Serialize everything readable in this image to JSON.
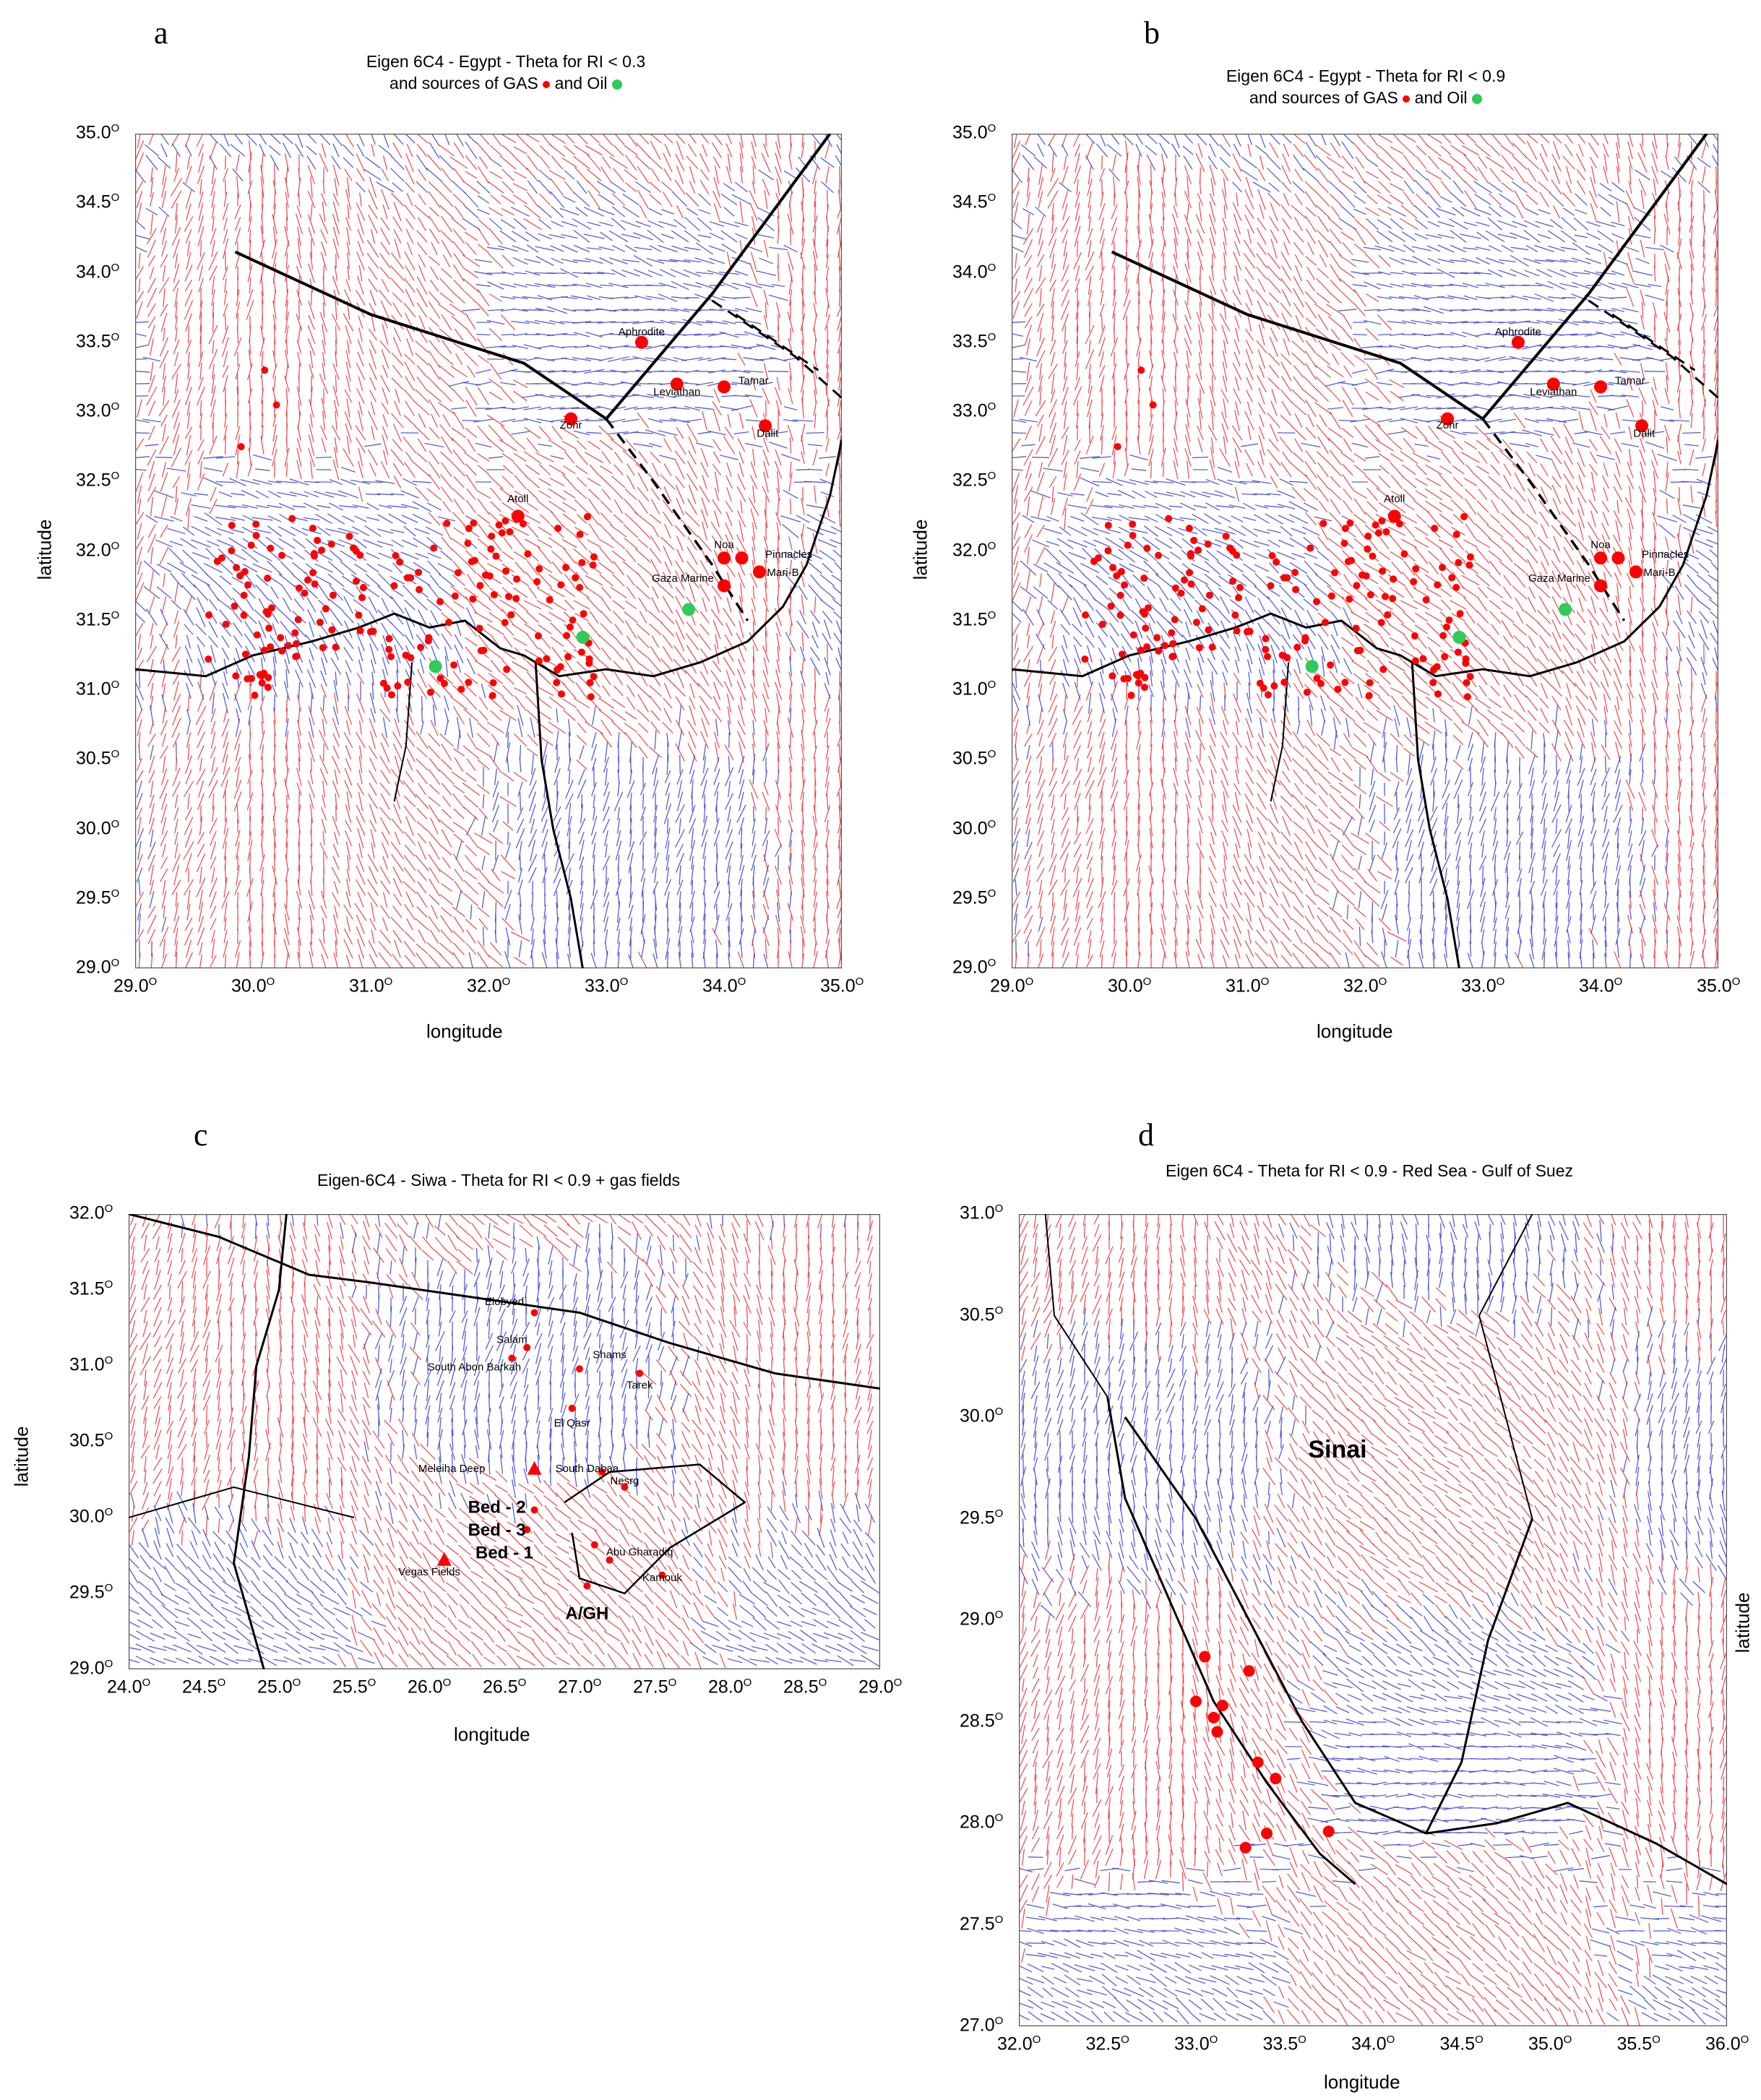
{
  "panels": [
    {
      "id": "a",
      "label": "a",
      "title_line1": "Eigen 6C4 - Egypt - Theta for RI < 0.3",
      "title_line2a": "and sources of GAS",
      "title_line2b": "and Oil",
      "xlabel": "longitude",
      "ylabel": "latitude",
      "xticks": [
        "29.0",
        "30.0",
        "31.0",
        "32.0",
        "33.0",
        "34.0",
        "35.0"
      ],
      "yticks": [
        "35.0",
        "34.5",
        "34.0",
        "33.5",
        "33.0",
        "32.5",
        "32.0",
        "31.5",
        "31.0",
        "30.5",
        "30.0",
        "29.5",
        "29.0"
      ],
      "xlim": [
        29.0,
        35.0
      ],
      "ylim": [
        29.0,
        35.0
      ],
      "labels": [
        {
          "text": "Aphrodite",
          "x": 33.3,
          "y": 33.55
        },
        {
          "text": "Leviathan",
          "x": 33.6,
          "y": 33.12
        },
        {
          "text": "Tamar",
          "x": 34.25,
          "y": 33.2
        },
        {
          "text": "Zohr",
          "x": 32.7,
          "y": 32.88
        },
        {
          "text": "Dalit",
          "x": 34.37,
          "y": 32.82
        },
        {
          "text": "Atoll",
          "x": 32.25,
          "y": 32.35
        },
        {
          "text": "Noa",
          "x": 34.0,
          "y": 32.02
        },
        {
          "text": "Pinnacles",
          "x": 34.55,
          "y": 31.95
        },
        {
          "text": "Mari-B",
          "x": 34.5,
          "y": 31.82
        },
        {
          "text": "Gaza Marine",
          "x": 33.65,
          "y": 31.78
        }
      ]
    },
    {
      "id": "b",
      "label": "b",
      "title_line1": "Eigen 6C4 - Egypt - Theta for RI < 0.9",
      "title_line2a": "and sources of GAS",
      "title_line2b": "and Oil",
      "xlabel": "longitude",
      "ylabel": "latitude",
      "xticks": [
        "29.0",
        "30.0",
        "31.0",
        "32.0",
        "33.0",
        "34.0",
        "35.0"
      ],
      "yticks": [
        "35.0",
        "34.5",
        "34.0",
        "33.5",
        "33.0",
        "32.5",
        "32.0",
        "31.5",
        "31.0",
        "30.5",
        "30.0",
        "29.5",
        "29.0"
      ],
      "xlim": [
        29.0,
        35.0
      ],
      "ylim": [
        29.0,
        35.0
      ],
      "labels": [
        {
          "text": "Aphrodite",
          "x": 33.3,
          "y": 33.55
        },
        {
          "text": "Leviathan",
          "x": 33.6,
          "y": 33.12
        },
        {
          "text": "Tamar",
          "x": 34.25,
          "y": 33.2
        },
        {
          "text": "Zohr",
          "x": 32.7,
          "y": 32.88
        },
        {
          "text": "Dalit",
          "x": 34.37,
          "y": 32.82
        },
        {
          "text": "Atoll",
          "x": 32.25,
          "y": 32.35
        },
        {
          "text": "Noa",
          "x": 34.0,
          "y": 32.02
        },
        {
          "text": "Pinnacles",
          "x": 34.55,
          "y": 31.95
        },
        {
          "text": "Mari-B",
          "x": 34.5,
          "y": 31.82
        },
        {
          "text": "Gaza Marine",
          "x": 33.65,
          "y": 31.78
        }
      ]
    },
    {
      "id": "c",
      "label": "c",
      "title_line1": "Eigen-6C4 - Siwa - Theta for RI < 0.9 + gas fields",
      "xlabel": "longitude",
      "ylabel": "latitude",
      "xticks": [
        "24.0",
        "24.5",
        "25.0",
        "25.5",
        "26.0",
        "26.5",
        "27.0",
        "27.5",
        "28.0",
        "28.5",
        "29.0"
      ],
      "yticks": [
        "32.0",
        "31.5",
        "31.0",
        "30.5",
        "30.0",
        "29.5",
        "29.0"
      ],
      "xlim": [
        24.0,
        29.0
      ],
      "ylim": [
        29.0,
        32.0
      ],
      "labels": [
        {
          "text": "Bed - 2",
          "x": 26.45,
          "y": 30.03,
          "big": true
        },
        {
          "text": "Bed - 3",
          "x": 26.45,
          "y": 29.88,
          "big": true
        },
        {
          "text": "Bed - 1",
          "x": 26.5,
          "y": 29.73,
          "big": true
        },
        {
          "text": "A/GH",
          "x": 27.05,
          "y": 29.33,
          "big": true
        },
        {
          "text": "Elobyed",
          "x": 26.5,
          "y": 31.4
        },
        {
          "text": "Salam",
          "x": 26.55,
          "y": 31.15
        },
        {
          "text": "South Abon Barkah",
          "x": 26.3,
          "y": 30.97
        },
        {
          "text": "Shams",
          "x": 27.2,
          "y": 31.05
        },
        {
          "text": "Tarek",
          "x": 27.4,
          "y": 30.85
        },
        {
          "text": "El Qasr",
          "x": 26.95,
          "y": 30.6
        },
        {
          "text": "Meleiha Deep",
          "x": 26.15,
          "y": 30.3
        },
        {
          "text": "South Dabaa",
          "x": 27.05,
          "y": 30.3
        },
        {
          "text": "Nesrg",
          "x": 27.3,
          "y": 30.22
        },
        {
          "text": "Abu Gharadiq",
          "x": 27.4,
          "y": 29.75
        },
        {
          "text": "Vegas Fields",
          "x": 26.0,
          "y": 29.62
        },
        {
          "text": "Kamouk",
          "x": 27.55,
          "y": 29.58
        }
      ]
    },
    {
      "id": "d",
      "label": "d",
      "title_line1": "Eigen 6C4 - Theta for RI < 0.9 - Red Sea - Gulf of Suez",
      "xlabel": "longitude",
      "ylabel": "latitude",
      "xticks": [
        "32.0",
        "32.5",
        "33.0",
        "33.5",
        "34.0",
        "34.5",
        "35.0",
        "35.5",
        "36.0"
      ],
      "yticks": [
        "31.0",
        "30.5",
        "30.0",
        "29.5",
        "29.0",
        "28.5",
        "28.0",
        "27.5",
        "27.0"
      ],
      "xlim": [
        32.0,
        36.0
      ],
      "ylim": [
        27.0,
        31.0
      ],
      "labels": [
        {
          "text": "Sinai",
          "x": 33.8,
          "y": 29.8,
          "big": true
        }
      ]
    }
  ],
  "degree_symbol": "O",
  "colors": {
    "red_field": "#e8343a",
    "blue_field": "#3b3fd8",
    "gas": "#ff0000",
    "oil": "#2ecc5a",
    "boundary": "#000000"
  }
}
